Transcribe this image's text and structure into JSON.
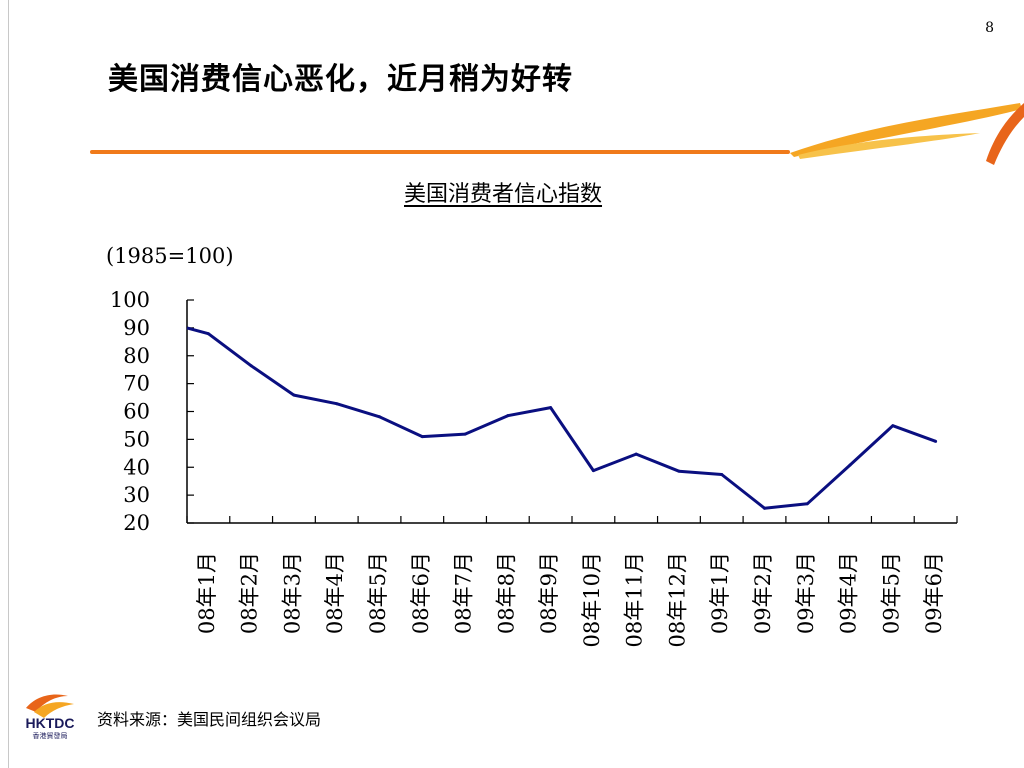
{
  "page_number": "8",
  "slide_title": "美国消费信心恶化，近月稍为好转",
  "source": "资料来源：美国民间组织会议局",
  "logo": {
    "text": "HKTDC",
    "subtext": "香港貿發局"
  },
  "colors": {
    "accent": "#f07a1a",
    "line": "#0a0f80"
  },
  "chart_data": {
    "type": "line",
    "title": "美国消费者信心指数",
    "unit_label": "(1985=100)",
    "categories": [
      "08年1月",
      "08年2月",
      "08年3月",
      "08年4月",
      "08年5月",
      "08年6月",
      "08年7月",
      "08年8月",
      "08年9月",
      "08年10月",
      "08年11月",
      "08年12月",
      "09年1月",
      "09年2月",
      "09年3月",
      "09年4月",
      "09年5月",
      "09年6月"
    ],
    "series": [
      {
        "values": [
          87.9,
          76.4,
          65.9,
          62.8,
          58.1,
          51.0,
          51.9,
          58.5,
          61.4,
          38.8,
          44.7,
          38.6,
          37.4,
          25.3,
          26.9,
          40.8,
          54.9,
          49.3
        ]
      }
    ],
    "first_point": 90,
    "yticks": [
      100,
      90,
      80,
      70,
      60,
      50,
      40,
      30,
      20
    ],
    "ylim": [
      20,
      100
    ],
    "grid": false,
    "legend": "none"
  }
}
